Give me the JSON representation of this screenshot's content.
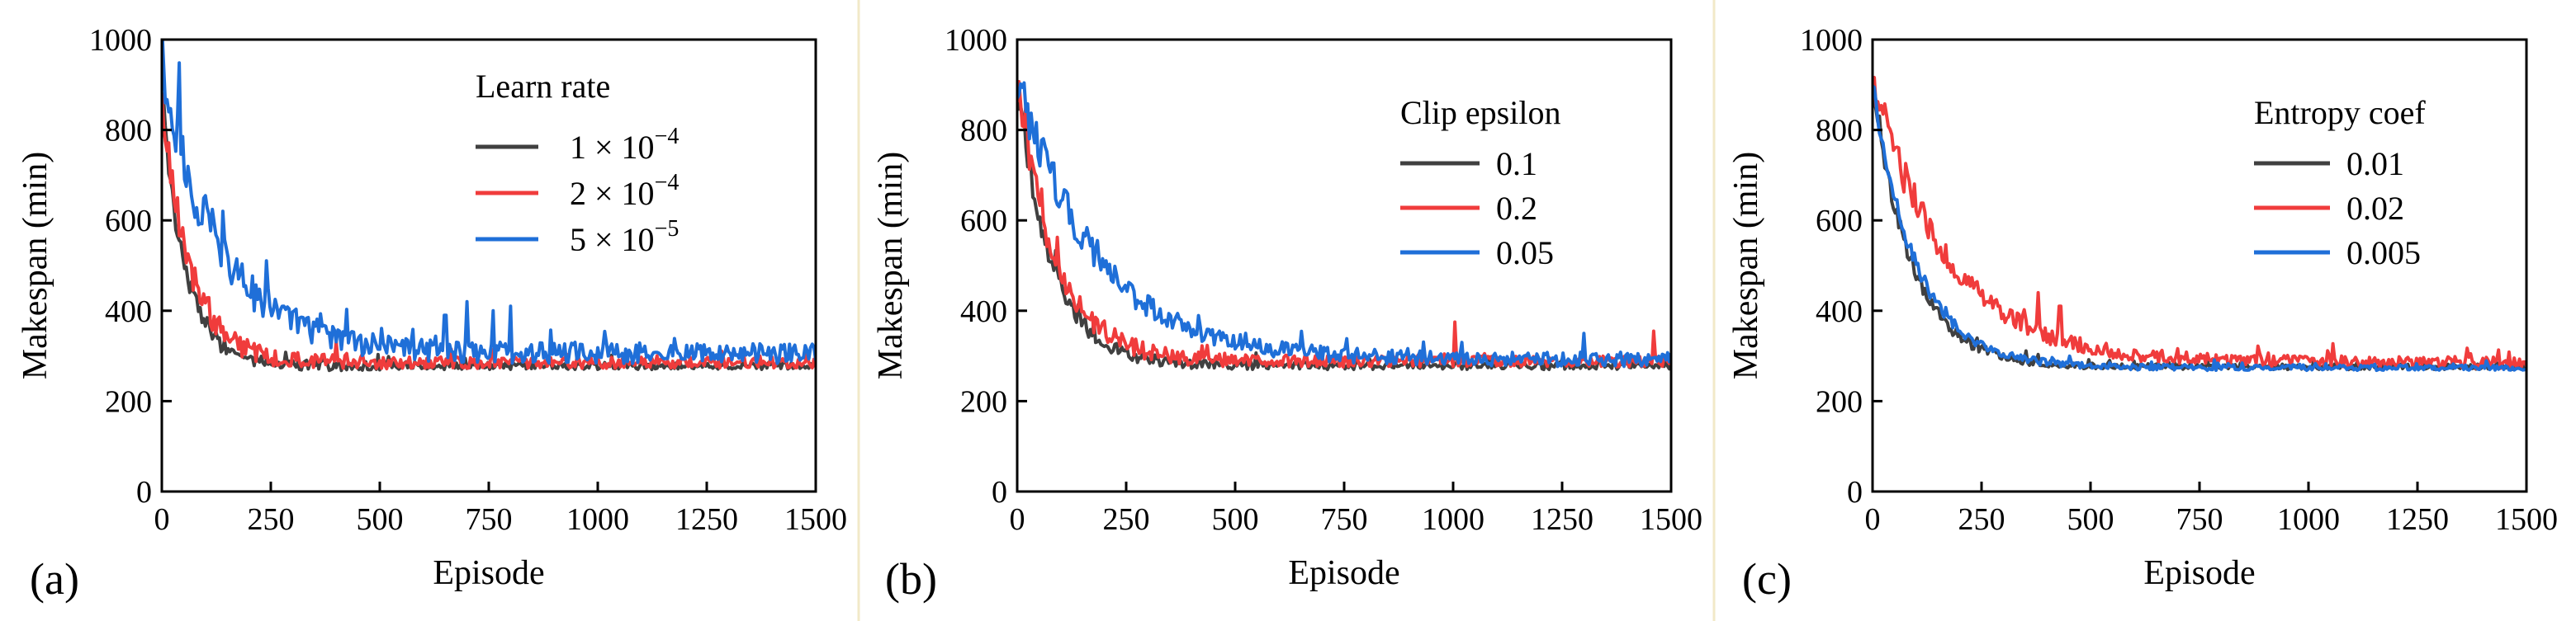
{
  "chart_data": [
    {
      "type": "line",
      "panel_label": "(a)",
      "xlabel": "Episode",
      "ylabel": "Makespan (min)",
      "xlim": [
        0,
        1500
      ],
      "ylim": [
        0,
        1000
      ],
      "xticks": [
        "0",
        "250",
        "500",
        "750",
        "1000",
        "1250",
        "1500"
      ],
      "yticks": [
        "0",
        "200",
        "400",
        "600",
        "800",
        "1000"
      ],
      "legend": {
        "title": "Learn rate",
        "placement": "top-right"
      },
      "series": [
        {
          "name": "1 × 10",
          "exp": "−4",
          "color": "#404040",
          "start": 860,
          "tail": 278,
          "decay": 55,
          "noise": 8,
          "spikes": []
        },
        {
          "name": "2 × 10",
          "exp": "−4",
          "color": "#f03c3c",
          "start": 870,
          "tail": 285,
          "decay": 65,
          "noise": 12,
          "spikes": []
        },
        {
          "name": "5 × 10",
          "exp": "−5",
          "color": "#1f6fd8",
          "start": 920,
          "tail": 305,
          "decay": 140,
          "noise": 22,
          "spikes": [
            [
              700,
              420
            ],
            [
              760,
              400
            ],
            [
              800,
              410
            ],
            [
              650,
              390
            ]
          ]
        }
      ]
    },
    {
      "type": "line",
      "panel_label": "(b)",
      "xlabel": "Episode",
      "ylabel": "Makespan (min)",
      "xlim": [
        0,
        1500
      ],
      "ylim": [
        0,
        1000
      ],
      "xticks": [
        "0",
        "250",
        "500",
        "750",
        "1000",
        "1250",
        "1500"
      ],
      "yticks": [
        "0",
        "200",
        "400",
        "600",
        "800",
        "1000"
      ],
      "legend": {
        "title": "Clip epsilon",
        "placement": "top-right"
      },
      "series": [
        {
          "name": "0.1",
          "exp": "",
          "color": "#404040",
          "start": 900,
          "tail": 278,
          "decay": 80,
          "noise": 8,
          "spikes": []
        },
        {
          "name": "0.2",
          "exp": "",
          "color": "#f03c3c",
          "start": 900,
          "tail": 288,
          "decay": 90,
          "noise": 12,
          "spikes": [
            [
              1005,
              375
            ],
            [
              1460,
              355
            ]
          ]
        },
        {
          "name": "0.05",
          "exp": "",
          "color": "#1f6fd8",
          "start": 920,
          "tail": 292,
          "decay": 180,
          "noise": 16,
          "spikes": [
            [
              1300,
              350
            ],
            [
              1020,
              330
            ]
          ]
        }
      ]
    },
    {
      "type": "line",
      "panel_label": "(c)",
      "xlabel": "Episode",
      "ylabel": "Makespan (min)",
      "xlim": [
        0,
        1500
      ],
      "ylim": [
        0,
        1000
      ],
      "xticks": [
        "0",
        "250",
        "500",
        "750",
        "1000",
        "1250",
        "1500"
      ],
      "yticks": [
        "0",
        "200",
        "400",
        "600",
        "800",
        "1000"
      ],
      "legend": {
        "title": "Entropy coef",
        "placement": "top-right"
      },
      "series": [
        {
          "name": "0.01",
          "exp": "",
          "color": "#404040",
          "start": 900,
          "tail": 276,
          "decay": 90,
          "noise": 6,
          "spikes": []
        },
        {
          "name": "0.02",
          "exp": "",
          "color": "#f03c3c",
          "start": 920,
          "tail": 285,
          "decay": 170,
          "noise": 14,
          "spikes": [
            [
              380,
              440
            ],
            [
              430,
              410
            ],
            [
              290,
              410
            ],
            [
              320,
              400
            ]
          ]
        },
        {
          "name": "0.005",
          "exp": "",
          "color": "#1f6fd8",
          "start": 900,
          "tail": 274,
          "decay": 100,
          "noise": 6,
          "spikes": []
        }
      ]
    }
  ]
}
